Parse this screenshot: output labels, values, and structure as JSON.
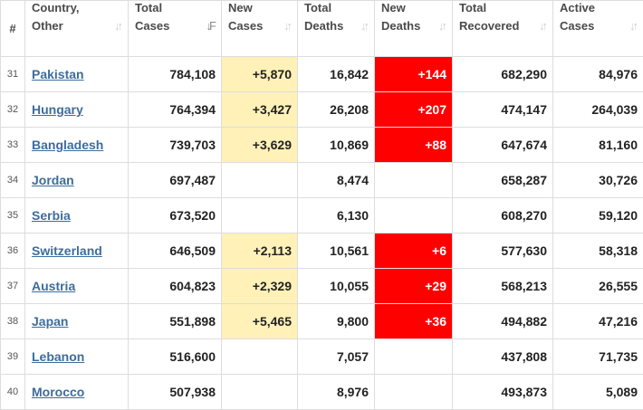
{
  "table": {
    "headers": {
      "num": "#",
      "country_1": "Country,",
      "country_2": "Other",
      "total_cases_1": "Total",
      "total_cases_2": "Cases",
      "new_cases_1": "New",
      "new_cases_2": "Cases",
      "total_deaths_1": "Total",
      "total_deaths_2": "Deaths",
      "new_deaths_1": "New",
      "new_deaths_2": "Deaths",
      "total_recovered_1": "Total",
      "total_recovered_2": "Recovered",
      "active_cases_1": "Active",
      "active_cases_2": "Cases"
    },
    "sort_icon": "sort-arrows-icon",
    "active_sort_icon": "sort-desc-icon",
    "rows": [
      {
        "num": "31",
        "country": "Pakistan",
        "total_cases": "784,108",
        "new_cases": "+5,870",
        "total_deaths": "16,842",
        "new_deaths": "+144",
        "total_recovered": "682,290",
        "active_cases": "84,976"
      },
      {
        "num": "32",
        "country": "Hungary",
        "total_cases": "764,394",
        "new_cases": "+3,427",
        "total_deaths": "26,208",
        "new_deaths": "+207",
        "total_recovered": "474,147",
        "active_cases": "264,039"
      },
      {
        "num": "33",
        "country": "Bangladesh",
        "total_cases": "739,703",
        "new_cases": "+3,629",
        "total_deaths": "10,869",
        "new_deaths": "+88",
        "total_recovered": "647,674",
        "active_cases": "81,160"
      },
      {
        "num": "34",
        "country": "Jordan",
        "total_cases": "697,487",
        "new_cases": "",
        "total_deaths": "8,474",
        "new_deaths": "",
        "total_recovered": "658,287",
        "active_cases": "30,726"
      },
      {
        "num": "35",
        "country": "Serbia",
        "total_cases": "673,520",
        "new_cases": "",
        "total_deaths": "6,130",
        "new_deaths": "",
        "total_recovered": "608,270",
        "active_cases": "59,120"
      },
      {
        "num": "36",
        "country": "Switzerland",
        "total_cases": "646,509",
        "new_cases": "+2,113",
        "total_deaths": "10,561",
        "new_deaths": "+6",
        "total_recovered": "577,630",
        "active_cases": "58,318"
      },
      {
        "num": "37",
        "country": "Austria",
        "total_cases": "604,823",
        "new_cases": "+2,329",
        "total_deaths": "10,055",
        "new_deaths": "+29",
        "total_recovered": "568,213",
        "active_cases": "26,555"
      },
      {
        "num": "38",
        "country": "Japan",
        "total_cases": "551,898",
        "new_cases": "+5,465",
        "total_deaths": "9,800",
        "new_deaths": "+36",
        "total_recovered": "494,882",
        "active_cases": "47,216"
      },
      {
        "num": "39",
        "country": "Lebanon",
        "total_cases": "516,600",
        "new_cases": "",
        "total_deaths": "7,057",
        "new_deaths": "",
        "total_recovered": "437,808",
        "active_cases": "71,735"
      },
      {
        "num": "40",
        "country": "Morocco",
        "total_cases": "507,938",
        "new_cases": "",
        "total_deaths": "8,976",
        "new_deaths": "",
        "total_recovered": "493,873",
        "active_cases": "5,089"
      }
    ]
  },
  "colors": {
    "new_cases_bg": "#fff1b8",
    "new_deaths_bg": "#ff0000",
    "link": "#3c6d9c",
    "border": "#dddddd"
  }
}
